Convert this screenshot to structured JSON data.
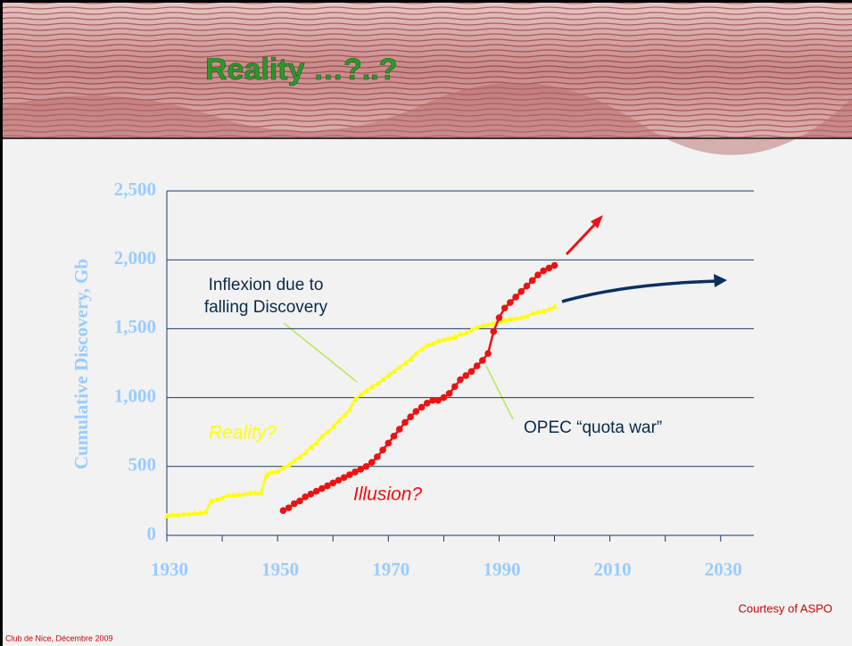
{
  "slide": {
    "title": "Reality …?..?",
    "credit": "Courtesy of ASPO",
    "footer": "Club de Nice, Décembre 2009"
  },
  "chart_data": {
    "type": "line",
    "y_label": "Cumulative Discovery, Gb",
    "xlim": [
      1930,
      2036
    ],
    "ylim": [
      0,
      2500
    ],
    "xticks": [
      1930,
      1950,
      1970,
      1990,
      2010,
      2030
    ],
    "yticks": [
      0,
      {
        "value": 500,
        "label": "500"
      },
      {
        "value": 1000,
        "label": "1,000"
      },
      {
        "value": 1500,
        "label": "1,500"
      },
      {
        "value": 2000,
        "label": "2,000"
      },
      {
        "value": 2500,
        "label": "2,500"
      }
    ],
    "grid": true,
    "annotations": {
      "inflexion": [
        "Inflexion due to",
        "falling Discovery"
      ],
      "reality": "Reality?",
      "illusion": "Illusion?",
      "opec": "OPEC “quota war”"
    },
    "series": [
      {
        "color": "#ffff00",
        "marker": "triangle",
        "x": [
          1930,
          1931,
          1932,
          1933,
          1934,
          1935,
          1936,
          1937,
          1938,
          1939,
          1940,
          1941,
          1942,
          1943,
          1944,
          1945,
          1946,
          1947,
          1948,
          1949,
          1950,
          1951,
          1952,
          1953,
          1954,
          1955,
          1956,
          1957,
          1958,
          1959,
          1960,
          1961,
          1962,
          1963,
          1964,
          1965,
          1966,
          1967,
          1968,
          1969,
          1970,
          1971,
          1972,
          1973,
          1974,
          1975,
          1976,
          1977,
          1978,
          1979,
          1980,
          1981,
          1982,
          1983,
          1984,
          1985,
          1986,
          1987,
          1988,
          1989,
          1990,
          1991,
          1992,
          1993,
          1994,
          1995,
          1996,
          1997,
          1998,
          1999,
          2000
        ],
        "values": [
          140,
          150,
          150,
          155,
          155,
          160,
          160,
          170,
          250,
          260,
          270,
          290,
          290,
          295,
          300,
          305,
          310,
          310,
          440,
          460,
          465,
          490,
          510,
          540,
          570,
          600,
          640,
          670,
          720,
          750,
          790,
          830,
          870,
          910,
          990,
          1020,
          1050,
          1080,
          1100,
          1130,
          1160,
          1190,
          1220,
          1250,
          1280,
          1320,
          1350,
          1380,
          1390,
          1410,
          1420,
          1430,
          1440,
          1460,
          1470,
          1490,
          1510,
          1520,
          1530,
          1540,
          1550,
          1560,
          1570,
          1575,
          1580,
          1590,
          1610,
          1620,
          1630,
          1640,
          1660
        ]
      },
      {
        "color": "#ee1111",
        "marker": "circle",
        "x": [
          1951,
          1952,
          1953,
          1954,
          1955,
          1956,
          1957,
          1958,
          1959,
          1960,
          1961,
          1962,
          1963,
          1964,
          1965,
          1966,
          1967,
          1968,
          1969,
          1970,
          1971,
          1972,
          1973,
          1974,
          1975,
          1976,
          1977,
          1978,
          1979,
          1980,
          1981,
          1982,
          1983,
          1984,
          1985,
          1986,
          1987,
          1988,
          1989,
          1990,
          1991,
          1992,
          1993,
          1994,
          1995,
          1996,
          1997,
          1998,
          1999,
          2000
        ],
        "values": [
          180,
          200,
          230,
          250,
          280,
          300,
          320,
          340,
          360,
          380,
          400,
          420,
          440,
          460,
          480,
          500,
          530,
          570,
          620,
          670,
          720,
          770,
          820,
          860,
          900,
          930,
          960,
          980,
          980,
          1000,
          1030,
          1080,
          1130,
          1160,
          1190,
          1230,
          1270,
          1320,
          1480,
          1580,
          1650,
          1690,
          1730,
          1770,
          1810,
          1850,
          1890,
          1920,
          1940,
          1960
        ]
      }
    ]
  }
}
